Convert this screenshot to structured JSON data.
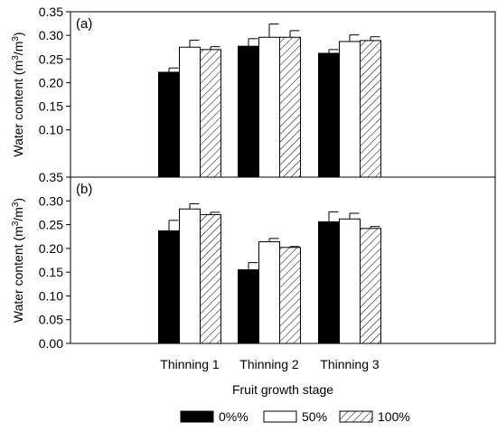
{
  "chart_data": [
    {
      "type": "bar",
      "panel_label": "(a)",
      "categories": [
        "Thinning 1",
        "Thinning 2",
        "Thinning 3"
      ],
      "series": [
        {
          "name": "0%%",
          "color": "#000000",
          "pattern": "solid",
          "values": [
            0.222,
            0.277,
            0.262
          ],
          "errors": [
            0.009,
            0.016,
            0.008
          ]
        },
        {
          "name": "50%",
          "color": "#ffffff",
          "pattern": "open",
          "values": [
            0.275,
            0.296,
            0.287
          ],
          "errors": [
            0.015,
            0.028,
            0.014
          ]
        },
        {
          "name": "100%",
          "color": "#ffffff",
          "pattern": "hatch",
          "values": [
            0.27,
            0.296,
            0.289
          ],
          "errors": [
            0.006,
            0.014,
            0.008
          ]
        }
      ],
      "ylim": [
        0.0,
        0.35
      ],
      "yticks": [
        "0.10",
        "0.15",
        "0.20",
        "0.25",
        "0.30",
        "0.35"
      ],
      "ylabel": "Water content (m3/m3)",
      "xlabel": ""
    },
    {
      "type": "bar",
      "panel_label": "(b)",
      "categories": [
        "Thinning 1",
        "Thinning 2",
        "Thinning 3"
      ],
      "series": [
        {
          "name": "0%%",
          "color": "#000000",
          "pattern": "solid",
          "values": [
            0.237,
            0.155,
            0.256
          ],
          "errors": [
            0.022,
            0.015,
            0.021
          ]
        },
        {
          "name": "50%",
          "color": "#ffffff",
          "pattern": "open",
          "values": [
            0.283,
            0.214,
            0.262
          ],
          "errors": [
            0.011,
            0.007,
            0.012
          ]
        },
        {
          "name": "100%",
          "color": "#ffffff",
          "pattern": "hatch",
          "values": [
            0.271,
            0.202,
            0.242
          ],
          "errors": [
            0.005,
            0.002,
            0.004
          ]
        }
      ],
      "ylim": [
        0.0,
        0.35
      ],
      "yticks": [
        "0.00",
        "0.05",
        "0.10",
        "0.15",
        "0.20",
        "0.25",
        "0.30",
        "0.35"
      ],
      "ylabel": "Water content (m3/m3)",
      "xlabel": "Fruit growth stage"
    }
  ],
  "ylabel_parts": {
    "pre": "Water content (m",
    "sup1": "3",
    "mid": "/m",
    "sup2": "3",
    "post": ")"
  },
  "legend": [
    "0%%",
    "50%",
    "100%"
  ]
}
